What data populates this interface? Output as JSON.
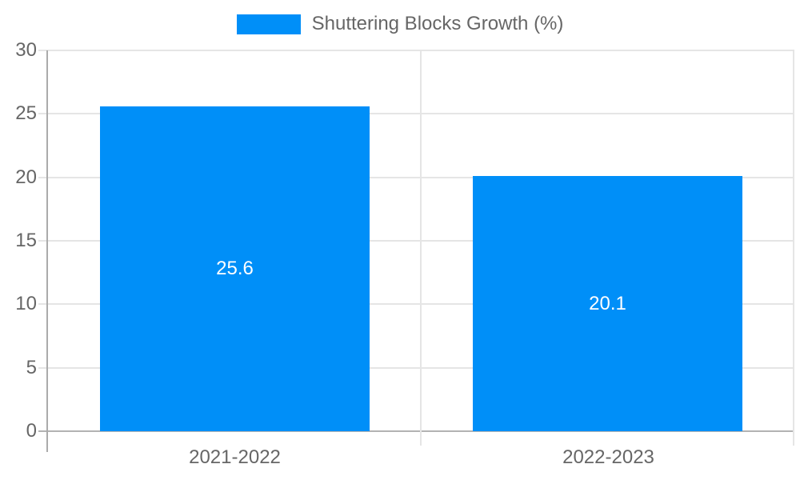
{
  "chart_data": {
    "type": "bar",
    "title": "",
    "legend": {
      "label": "Shuttering Blocks Growth (%)",
      "position": "top"
    },
    "categories": [
      "2021-2022",
      "2022-2023"
    ],
    "series": [
      {
        "name": "Shuttering Blocks Growth (%)",
        "values": [
          25.6,
          20.1
        ],
        "value_labels": [
          "25.6",
          "20.1"
        ]
      }
    ],
    "xlabel": "",
    "ylabel": "",
    "ylim": [
      0,
      30
    ],
    "yticks": [
      0,
      5,
      10,
      15,
      20,
      25,
      30
    ],
    "grid": true,
    "colors": {
      "bar": "#008ff8",
      "gridline": "#e5e5e5",
      "axis_line": "#ababab",
      "baseline": "#b3b3b3",
      "tick_label": "#666666",
      "legend_text": "#666666",
      "value_label": "#ffffff",
      "background": "#ffffff"
    }
  }
}
